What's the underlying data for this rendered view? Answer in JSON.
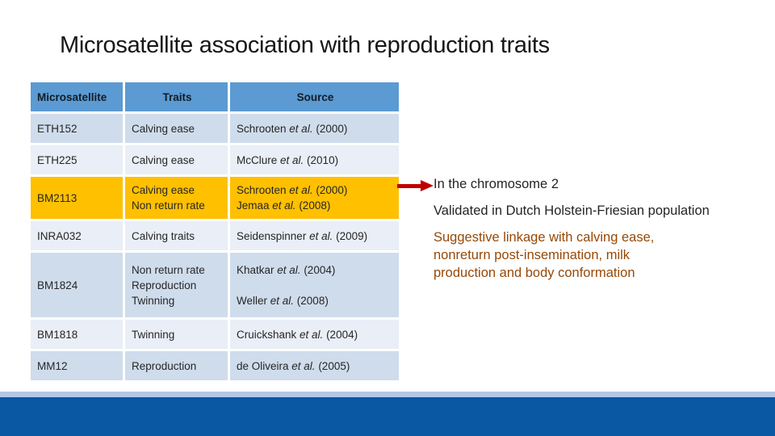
{
  "slide": {
    "title": "Microsatellite association with reproduction traits"
  },
  "table": {
    "headers": [
      "Microsatellite",
      "Traits",
      "Source"
    ],
    "rows": [
      {
        "microsatellite": "ETH152",
        "traits": [
          "Calving ease"
        ],
        "sources": [
          "Schrooten et al. (2000)"
        ],
        "highlight": false
      },
      {
        "microsatellite": "ETH225",
        "traits": [
          "Calving ease"
        ],
        "sources": [
          "McClure et al. (2010)"
        ],
        "highlight": false
      },
      {
        "microsatellite": "BM2113",
        "traits": [
          "Calving ease",
          "Non return rate"
        ],
        "sources": [
          "Schrooten et al. (2000)",
          "Jemaa et al. (2008)"
        ],
        "highlight": true
      },
      {
        "microsatellite": "INRA032",
        "traits": [
          "Calving traits"
        ],
        "sources": [
          "Seidenspinner et al. (2009)"
        ],
        "highlight": false
      },
      {
        "microsatellite": "BM1824",
        "traits": [
          "Non return rate",
          "Reproduction",
          "Twinning"
        ],
        "sources": [
          "Khatkar et al. (2004)",
          "",
          "Weller et al. (2008)"
        ],
        "highlight": false
      },
      {
        "microsatellite": "BM1818",
        "traits": [
          "Twinning"
        ],
        "sources": [
          "Cruickshank et al. (2004)"
        ],
        "highlight": false
      },
      {
        "microsatellite": "MM12",
        "traits": [
          "Reproduction"
        ],
        "sources": [
          "de Oliveira et al. (2005)"
        ],
        "highlight": false
      }
    ]
  },
  "callout": {
    "arrow_icon": "red-right-arrow",
    "paragraphs": [
      {
        "lines": [
          "In the chromosome 2"
        ],
        "color": "#242424"
      },
      {
        "lines": [
          "Validated in Dutch Holstein-Friesian population"
        ],
        "color": "#242424"
      },
      {
        "lines": [
          "Suggestive linkage with calving ease,",
          "nonreturn post-insemination, milk",
          "production and body conformation"
        ],
        "color": "#974806"
      }
    ]
  },
  "colors": {
    "header_bg": "#5b9ad2",
    "row_dark": "#cfdcec",
    "row_light": "#e9eef7",
    "highlight": "#ffc000",
    "arrow": "#bf0000",
    "footer_accent": "#b3c8e8",
    "footer_bar": "#0a57a4"
  }
}
